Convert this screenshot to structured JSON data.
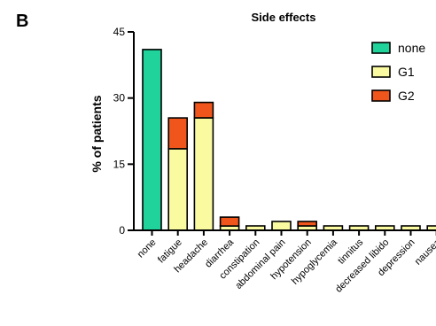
{
  "panel_label": "B",
  "chart_data": {
    "type": "bar",
    "stacked": true,
    "title": "Side effects",
    "xlabel": "",
    "ylabel": "% of patients",
    "ylim": [
      0,
      45
    ],
    "yticks": [
      0,
      15,
      30,
      45
    ],
    "grid": false,
    "legend_position": "top-right",
    "categories": [
      "none",
      "fatigue",
      "headache",
      "diarrhea",
      "constipation",
      "abdominal pain",
      "hypotension",
      "hypoglycemia",
      "tinnitus",
      "decreased libido",
      "depression",
      "nausea"
    ],
    "series": [
      {
        "name": "none",
        "color": "#1fd39a",
        "values": [
          41,
          0,
          0,
          0,
          0,
          0,
          0,
          0,
          0,
          0,
          0,
          0
        ]
      },
      {
        "name": "G1",
        "color": "#fafaa0",
        "values": [
          0,
          18.5,
          25.5,
          1,
          1,
          2,
          1,
          1,
          1,
          1,
          1,
          1
        ]
      },
      {
        "name": "G2",
        "color": "#f0561b",
        "values": [
          0,
          7,
          3.5,
          2,
          0,
          0,
          1,
          0,
          0,
          0,
          0,
          0
        ]
      }
    ]
  }
}
